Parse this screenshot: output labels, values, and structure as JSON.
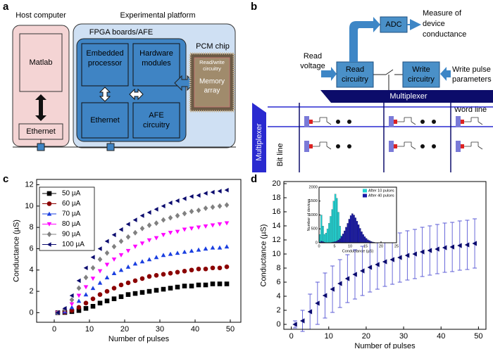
{
  "panel_labels": [
    "a",
    "b",
    "c",
    "d"
  ],
  "diagram_a": {
    "host_title": "Host computer",
    "platform_title": "Experimental platform",
    "matlab": "Matlab",
    "host_ethernet": "Ethernet",
    "fpga_title": "FPGA boards/AFE",
    "embedded": [
      "Embedded",
      "processor"
    ],
    "hardware": [
      "Hardware",
      "modules"
    ],
    "ethernet": "Ethernet",
    "afe": [
      "AFE",
      "circuitry"
    ],
    "pcm_title": "PCM chip",
    "rw": [
      "Read/write",
      "circuitry"
    ],
    "memory": [
      "Memory",
      "array"
    ]
  },
  "diagram_b": {
    "read_voltage": [
      "Read",
      "voltage"
    ],
    "adc": "ADC",
    "measure": [
      "Measure of",
      "device",
      "conductance"
    ],
    "read_circuitry": [
      "Read",
      "circuitry"
    ],
    "write_circuitry": [
      "Write",
      "circuitry"
    ],
    "write_params": [
      "Write pulse",
      "parameters"
    ],
    "multiplexer_top": "Multiplexer",
    "multiplexer_side": "Multiplexer",
    "word_line": "Word line",
    "bit_line": "Bit line"
  },
  "chart_data": [
    {
      "type": "line",
      "xlabel": "Number of pulses",
      "ylabel": "Conductance (µS)",
      "x": [
        1,
        3,
        5,
        7,
        9,
        11,
        13,
        15,
        17,
        19,
        21,
        23,
        25,
        27,
        29,
        31,
        33,
        35,
        37,
        39,
        41,
        43,
        45,
        47,
        49
      ],
      "series": [
        {
          "name": "50 µA",
          "color": "#000000",
          "marker": "square",
          "values": [
            0,
            0.02,
            0.1,
            0.2,
            0.4,
            0.6,
            0.9,
            1.1,
            1.3,
            1.5,
            1.7,
            1.8,
            1.9,
            2.0,
            2.1,
            2.2,
            2.3,
            2.4,
            2.5,
            2.5,
            2.6,
            2.6,
            2.7,
            2.7,
            2.7
          ]
        },
        {
          "name": "60 µA",
          "color": "#8b0000",
          "marker": "circle",
          "values": [
            0,
            0.05,
            0.2,
            0.5,
            0.9,
            1.3,
            1.7,
            2.0,
            2.3,
            2.6,
            2.8,
            3.0,
            3.2,
            3.4,
            3.5,
            3.6,
            3.7,
            3.8,
            3.9,
            4.0,
            4.1,
            4.1,
            4.2,
            4.2,
            4.3
          ]
        },
        {
          "name": "70 µA",
          "color": "#1a3fe0",
          "marker": "triangle-up",
          "values": [
            0,
            0.1,
            0.5,
            1.1,
            1.7,
            2.3,
            2.8,
            3.3,
            3.7,
            4.0,
            4.3,
            4.6,
            4.8,
            5.0,
            5.2,
            5.4,
            5.5,
            5.6,
            5.7,
            5.8,
            5.9,
            6.0,
            6.1,
            6.1,
            6.2
          ]
        },
        {
          "name": "80 µA",
          "color": "#ff00ff",
          "marker": "triangle-down",
          "values": [
            0,
            0.2,
            0.8,
            1.6,
            2.4,
            3.2,
            3.9,
            4.5,
            5.0,
            5.4,
            5.8,
            6.2,
            6.5,
            6.8,
            7.0,
            7.3,
            7.5,
            7.6,
            7.8,
            7.9,
            8.0,
            8.1,
            8.2,
            8.3,
            8.4
          ]
        },
        {
          "name": "90 µA",
          "color": "#808080",
          "marker": "diamond",
          "values": [
            0,
            0.3,
            1.2,
            2.3,
            3.3,
            4.2,
            5.0,
            5.6,
            6.2,
            6.7,
            7.1,
            7.5,
            7.9,
            8.2,
            8.4,
            8.7,
            8.9,
            9.1,
            9.3,
            9.5,
            9.6,
            9.8,
            9.9,
            10.0,
            10.1
          ]
        },
        {
          "name": "100 µA",
          "color": "#0a0a6e",
          "marker": "triangle-left",
          "values": [
            0,
            0.4,
            1.6,
            3.0,
            4.2,
            5.2,
            6.0,
            6.7,
            7.3,
            7.8,
            8.3,
            8.7,
            9.1,
            9.4,
            9.7,
            10.0,
            10.3,
            10.5,
            10.7,
            10.9,
            11.0,
            11.2,
            11.3,
            11.4,
            11.5
          ]
        }
      ],
      "xlim": [
        -5,
        53
      ],
      "ylim": [
        -0.9,
        12.5
      ],
      "xticks": [
        0,
        10,
        20,
        30,
        40,
        50
      ],
      "yticks": [
        0,
        2,
        4,
        6,
        8,
        10,
        12
      ],
      "legend": "upper-left"
    },
    {
      "type": "errorbar",
      "xlabel": "Number of pulses",
      "ylabel": "Conductance (µS)",
      "x": [
        1,
        3,
        5,
        7,
        9,
        11,
        13,
        15,
        17,
        19,
        21,
        23,
        25,
        27,
        29,
        31,
        33,
        35,
        37,
        39,
        41,
        43,
        45,
        47,
        49
      ],
      "values": [
        0,
        0.5,
        1.8,
        3.0,
        4.1,
        5.0,
        5.8,
        6.5,
        7.1,
        7.6,
        8.1,
        8.5,
        8.9,
        9.2,
        9.5,
        9.8,
        10.0,
        10.3,
        10.5,
        10.7,
        10.9,
        11.0,
        11.2,
        11.3,
        11.5
      ],
      "errors": [
        0.5,
        1.5,
        2.5,
        3.0,
        3.2,
        3.3,
        3.4,
        3.4,
        3.5,
        3.5,
        3.5,
        3.5,
        3.5,
        3.5,
        3.5,
        3.5,
        3.5,
        3.5,
        3.5,
        3.5,
        3.5,
        3.5,
        3.5,
        3.5,
        3.5
      ],
      "color": "#0a0a6e",
      "error_color": "#5b5bd6",
      "marker": "triangle-left",
      "xlim": [
        -2,
        52
      ],
      "ylim": [
        -0.7,
        20.3
      ],
      "xticks": [
        0,
        10,
        20,
        30,
        40,
        50
      ],
      "yticks": [
        0,
        2,
        4,
        6,
        8,
        10,
        12,
        14,
        16,
        18,
        20
      ]
    },
    {
      "type": "histogram",
      "xlabel": "Conductance (µS)",
      "ylabel": "Number of devices",
      "bins": [
        0,
        0.5,
        1,
        1.5,
        2,
        2.5,
        3,
        3.5,
        4,
        4.5,
        5,
        5.5,
        6,
        6.5,
        7,
        7.5,
        8,
        8.5,
        9,
        9.5,
        10,
        10.5,
        11,
        11.5,
        12,
        12.5,
        13,
        13.5,
        14,
        14.5,
        15,
        15.5,
        16,
        16.5,
        17,
        17.5,
        18,
        18.5,
        19,
        19.5,
        20
      ],
      "series": [
        {
          "name": "After 10 pulses",
          "color": "#22d3d3",
          "values": [
            300,
            1000,
            600,
            300,
            350,
            500,
            700,
            950,
            1200,
            1500,
            1750,
            1600,
            1100,
            600,
            250,
            80,
            20,
            0,
            0,
            0,
            0,
            0,
            0,
            0,
            0,
            0,
            0,
            0,
            0,
            0,
            0,
            0,
            0,
            0,
            0,
            0,
            0,
            0,
            0,
            0
          ]
        },
        {
          "name": "After 40 pulses",
          "color": "#1a1aa8",
          "values": [
            20,
            60,
            40,
            20,
            10,
            10,
            10,
            10,
            20,
            30,
            40,
            60,
            100,
            150,
            220,
            320,
            430,
            560,
            700,
            850,
            980,
            1050,
            1000,
            900,
            780,
            650,
            520,
            400,
            300,
            220,
            160,
            110,
            80,
            50,
            30,
            20,
            10,
            5,
            3,
            2
          ]
        }
      ],
      "xlim": [
        0,
        25
      ],
      "ylim": [
        0,
        2000
      ],
      "xticks": [
        0,
        5,
        10,
        15,
        20,
        25
      ],
      "yticks": [
        0,
        500,
        1000,
        1500,
        2000
      ],
      "legend": "upper-right"
    }
  ]
}
